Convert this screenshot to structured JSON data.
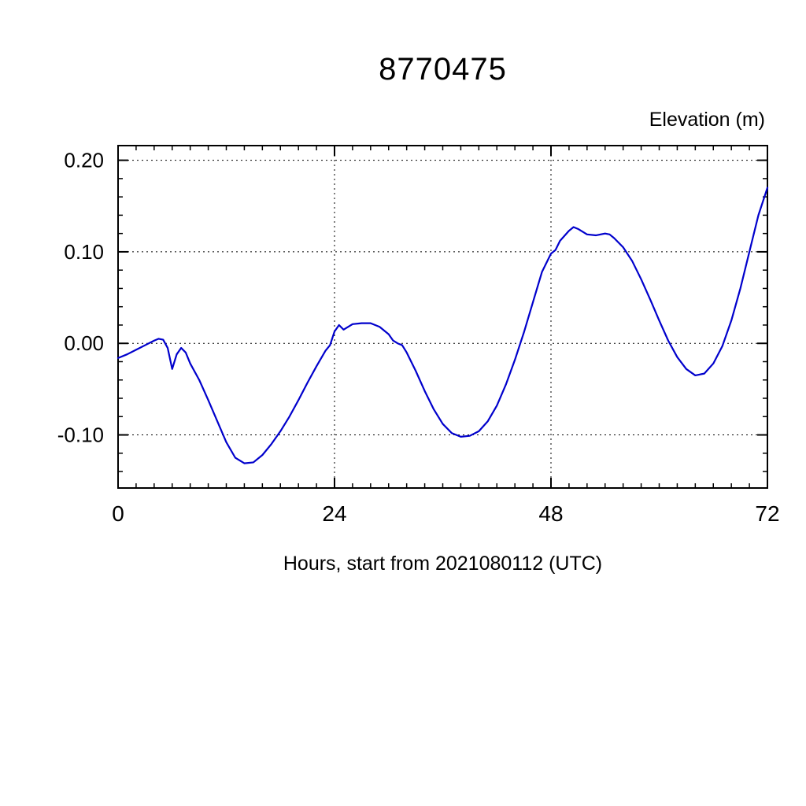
{
  "title": "8770475",
  "axes": {
    "y_title": "Elevation (m)",
    "x_title": "Hours, start from 2021080112 (UTC)"
  },
  "chart_data": {
    "type": "line",
    "title": "8770475",
    "xlabel": "Hours, start from 2021080112 (UTC)",
    "ylabel": "Elevation (m)",
    "xlim": [
      0,
      72
    ],
    "ylim": [
      -0.158,
      0.216
    ],
    "x_ticks": [
      0,
      24,
      48,
      72
    ],
    "x_tick_labels": [
      "0",
      "24",
      "48",
      "72"
    ],
    "y_ticks": [
      -0.1,
      0.0,
      0.1,
      0.2
    ],
    "y_tick_labels": [
      "-0.10",
      "0.00",
      "0.10",
      "0.20"
    ],
    "x_minor_step": 2,
    "y_minor_step": 0.02,
    "grid": true,
    "grid_style": "dashed",
    "legend": "none",
    "line_color": "#0000cc",
    "frame_color": "#000000",
    "series": [
      {
        "name": "elevation",
        "x": [
          0,
          1,
          2,
          3,
          4,
          4.5,
          5,
          5.5,
          6,
          6.5,
          7,
          7.5,
          8,
          9,
          10,
          11,
          12,
          13,
          14,
          15,
          16,
          17,
          18,
          19,
          20,
          21,
          22,
          23,
          23.5,
          24,
          24.5,
          25,
          25.5,
          26,
          27,
          28,
          29,
          30,
          30.5,
          31,
          31.5,
          32,
          33,
          34,
          35,
          36,
          37,
          38,
          39,
          40,
          41,
          42,
          43,
          44,
          45,
          46,
          47,
          48,
          48.5,
          49,
          50,
          50.5,
          51,
          52,
          53,
          54,
          54.5,
          55,
          56,
          57,
          58,
          59,
          60,
          61,
          62,
          63,
          64,
          65,
          66,
          67,
          68,
          69,
          70,
          71,
          72
        ],
        "y": [
          -0.016,
          -0.012,
          -0.007,
          -0.002,
          0.003,
          0.005,
          0.004,
          -0.005,
          -0.028,
          -0.012,
          -0.005,
          -0.01,
          -0.022,
          -0.04,
          -0.062,
          -0.085,
          -0.108,
          -0.125,
          -0.131,
          -0.13,
          -0.122,
          -0.11,
          -0.096,
          -0.08,
          -0.062,
          -0.043,
          -0.025,
          -0.008,
          -0.002,
          0.013,
          0.02,
          0.015,
          0.018,
          0.021,
          0.022,
          0.022,
          0.018,
          0.01,
          0.003,
          0.0,
          -0.002,
          -0.01,
          -0.03,
          -0.052,
          -0.072,
          -0.088,
          -0.098,
          -0.102,
          -0.101,
          -0.096,
          -0.085,
          -0.068,
          -0.045,
          -0.018,
          0.012,
          0.045,
          0.078,
          0.098,
          0.102,
          0.112,
          0.123,
          0.127,
          0.125,
          0.119,
          0.118,
          0.12,
          0.119,
          0.115,
          0.105,
          0.09,
          0.07,
          0.048,
          0.025,
          0.003,
          -0.015,
          -0.028,
          -0.035,
          -0.033,
          -0.022,
          -0.003,
          0.025,
          0.06,
          0.1,
          0.14,
          0.17
        ]
      }
    ]
  }
}
